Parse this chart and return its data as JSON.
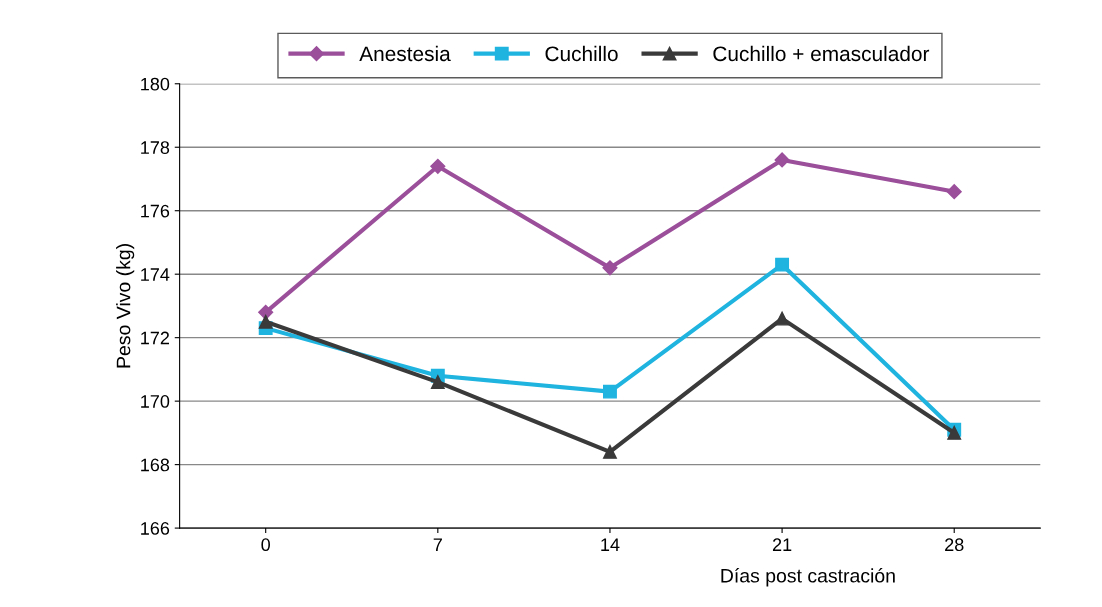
{
  "chart_data": {
    "type": "line",
    "ylabel": "Peso Vivo (kg)",
    "xlabel": "Días post castración",
    "categories": [
      "0",
      "7",
      "14",
      "21",
      "28"
    ],
    "series": [
      {
        "name": "Anestesia",
        "color": "#9b4f9b",
        "marker": "diamond",
        "values": [
          172.8,
          177.4,
          174.2,
          177.6,
          176.6
        ]
      },
      {
        "name": "Cuchillo",
        "color": "#1fb3e0",
        "marker": "square",
        "values": [
          172.3,
          170.8,
          170.3,
          174.3,
          169.1
        ]
      },
      {
        "name": "Cuchillo + emasculador",
        "color": "#3a3a3a",
        "marker": "triangle",
        "values": [
          172.5,
          170.6,
          168.4,
          172.6,
          169.0
        ]
      }
    ],
    "ylim": [
      166,
      180
    ],
    "yticks": [
      166,
      168,
      170,
      172,
      174,
      176,
      178,
      180
    ],
    "grid": "y",
    "legend": "top",
    "line_style": "solid"
  }
}
